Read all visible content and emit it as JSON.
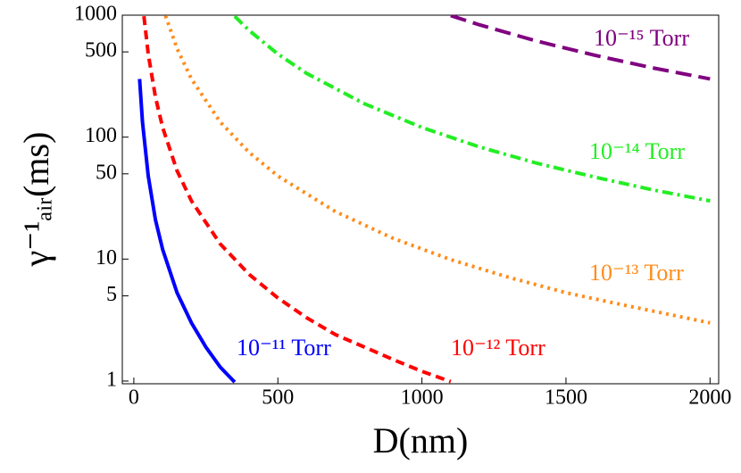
{
  "chart_data": {
    "type": "line",
    "x_label": "D(nm)",
    "y_label": "γ⁻¹ₐᵢᵣ(ms)",
    "log_y": true,
    "xlim": [
      -40,
      2030
    ],
    "ylim": [
      0.95,
      1000
    ],
    "xticks": [
      0,
      500,
      1000,
      1500,
      2000
    ],
    "yticks": [
      1,
      5,
      10,
      50,
      100,
      500,
      1000
    ],
    "series": [
      {
        "name": "10⁻¹¹ Torr",
        "color": "#0000ff",
        "style": "solid",
        "x": [
          20,
          30,
          50,
          75,
          100,
          150,
          200,
          250,
          300,
          350
        ],
        "values": [
          300,
          133,
          48,
          21,
          12,
          5.3,
          3,
          1.9,
          1.3,
          0.98
        ]
      },
      {
        "name": "10⁻¹² Torr",
        "color": "#ff0000",
        "style": "dashed",
        "x": [
          35,
          50,
          75,
          100,
          150,
          200,
          300,
          400,
          500,
          600,
          700,
          800,
          900,
          1000,
          1100
        ],
        "values": [
          980,
          480,
          213,
          120,
          53,
          30,
          13.3,
          7.5,
          4.8,
          3.3,
          2.4,
          1.9,
          1.5,
          1.2,
          0.99
        ]
      },
      {
        "name": "10⁻¹³ Torr",
        "color": "#ff8c1a",
        "style": "dotted",
        "x": [
          110,
          150,
          200,
          300,
          400,
          500,
          700,
          900,
          1100,
          1300,
          1500,
          1700,
          2000
        ],
        "values": [
          990,
          533,
          300,
          133,
          75,
          48,
          24.5,
          14.8,
          9.9,
          7.1,
          5.3,
          4.2,
          3
        ]
      },
      {
        "name": "10⁻¹⁴ Torr",
        "color": "#22ee22",
        "style": "dashdot",
        "x": [
          350,
          400,
          500,
          600,
          800,
          1000,
          1200,
          1400,
          1600,
          1800,
          2000
        ],
        "values": [
          980,
          750,
          480,
          333,
          188,
          120,
          83,
          61,
          47,
          37,
          30
        ]
      },
      {
        "name": "10⁻¹⁵ Torr",
        "color": "#800080",
        "style": "longdash",
        "x": [
          1100,
          1200,
          1400,
          1600,
          1800,
          2000
        ],
        "values": [
          992,
          833,
          612,
          469,
          370,
          300
        ]
      }
    ]
  }
}
